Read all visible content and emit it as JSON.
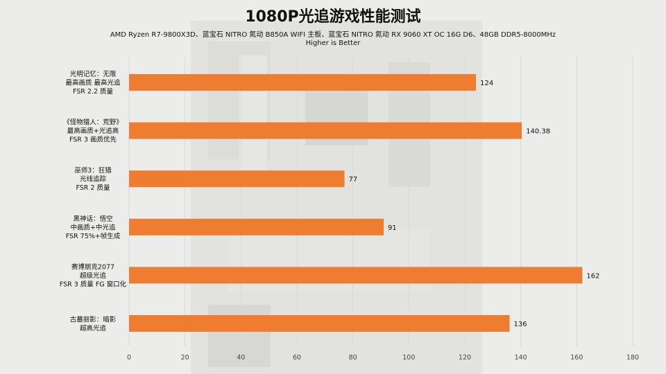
{
  "colors": {
    "bar": "#ee7d31",
    "grid": "#d9d9d6",
    "background": "#ececea"
  },
  "chart_data": {
    "type": "bar",
    "orientation": "horizontal",
    "title": "1080P光追游戏性能测试",
    "subtitle": "AMD Ryzen R7-9800X3D、蓝宝石 NITRO 氮动 B850A WIFI 主板、蓝宝石 NITRO 氮动 RX 9060 XT OC 16G D6、48GB DDR5-8000MHz",
    "note": "Higher is Better",
    "categories": [
      [
        "光明记忆：无限",
        "最高画质 最高光追",
        "FSR 2.2 质量"
      ],
      [
        "《怪物猎人：荒野》",
        "最高画质+光追高",
        "FSR 3 画质优先"
      ],
      [
        "巫师3：狂猎",
        "光线追踪",
        "FSR 2 质量"
      ],
      [
        "黑神话：悟空",
        "中画质+中光追",
        "FSR 75%+帧生成"
      ],
      [
        "赛博朋克2077",
        "超级光追",
        "FSR 3 质量 FG 窗口化"
      ],
      [
        "古墓丽影：暗影",
        "超高光追"
      ]
    ],
    "values": [
      124,
      140.38,
      77,
      91,
      162,
      136
    ],
    "value_labels": [
      "124",
      "140.38",
      "77",
      "91",
      "162",
      "136"
    ],
    "xlim": [
      0,
      180
    ],
    "xticks": [
      0,
      20,
      40,
      60,
      80,
      100,
      120,
      140,
      160,
      180
    ],
    "grid": true
  }
}
